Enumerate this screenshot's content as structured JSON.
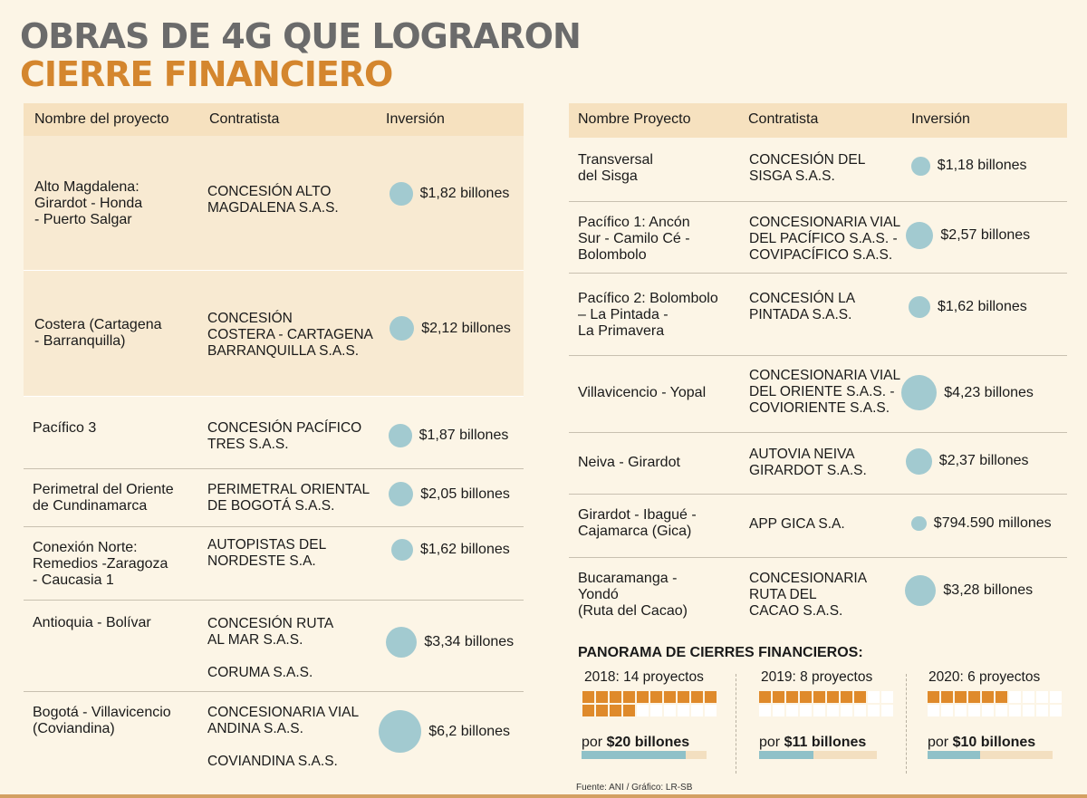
{
  "title": {
    "line1": "OBRAS DE 4G QUE LOGRARON",
    "line2": "CIERRE FINANCIERO"
  },
  "left_table": {
    "headers": {
      "name": "Nombre del proyecto",
      "contractor": "Contratista",
      "investment": "Inversión"
    },
    "rows": [
      {
        "name": "Alto Magdalena:\nGirardot - Honda\n- Puerto Salgar",
        "contractor": "CONCESIÓN ALTO\nMAGDALENA S.A.S.",
        "investment": "$1,82 billones",
        "value_billions": 1.82
      },
      {
        "name": "Costera (Cartagena\n - Barranquilla)",
        "contractor": "CONCESIÓN\nCOSTERA - CARTAGENA\nBARRANQUILLA S.A.S.",
        "investment": "$2,12 billones",
        "value_billions": 2.12
      },
      {
        "name": "Pacífico 3",
        "contractor": "CONCESIÓN PACÍFICO\nTRES S.A.S.",
        "investment": "$1,87 billones",
        "value_billions": 1.87
      },
      {
        "name": "Perimetral del Oriente\nde Cundinamarca",
        "contractor": "PERIMETRAL ORIENTAL\nDE BOGOTÁ S.A.S.",
        "investment": "$2,05 billones",
        "value_billions": 2.05
      },
      {
        "name": "Conexión Norte:\nRemedios -Zaragoza\n- Caucasia 1",
        "contractor": "AUTOPISTAS DEL\nNORDESTE S.A.",
        "investment": "$1,62 billones",
        "value_billions": 1.62
      },
      {
        "name": "Antioquia - Bolívar",
        "contractor": "CONCESIÓN RUTA\nAL MAR S.A.S.\n\nCORUMA S.A.S.",
        "investment": "$3,34 billones",
        "value_billions": 3.34
      },
      {
        "name": "Bogotá - Villavicencio\n (Coviandina)",
        "contractor": "CONCESIONARIA VIAL\nANDINA S.A.S.\n\nCOVIANDINA S.A.S.",
        "investment": "$6,2 billones",
        "value_billions": 6.2
      }
    ]
  },
  "right_table": {
    "headers": {
      "name": "Nombre Proyecto",
      "contractor": "Contratista",
      "investment": "Inversión"
    },
    "rows": [
      {
        "name": "Transversal\ndel Sisga",
        "contractor": "CONCESIÓN DEL\nSISGA S.A.S.",
        "investment": "$1,18 billones",
        "value_billions": 1.18
      },
      {
        "name": "Pacífico 1: Ancón\nSur - Camilo Cé -\nBolombolo",
        "contractor": "CONCESIONARIA VIAL\nDEL PACÍFICO S.A.S. -\nCOVIPACÍFICO S.A.S.",
        "investment": "$2,57 billones",
        "value_billions": 2.57
      },
      {
        "name": "Pacífico 2: Bolombolo\n– La Pintada -\n La Primavera",
        "contractor": "CONCESIÓN LA\nPINTADA S.A.S.",
        "investment": "$1,62 billones",
        "value_billions": 1.62
      },
      {
        "name": "Villavicencio - Yopal",
        "contractor": "CONCESIONARIA VIAL\nDEL ORIENTE S.A.S. -\nCOVIORIENTE S.A.S.",
        "investment": "$4,23 billones",
        "value_billions": 4.23
      },
      {
        "name": "Neiva - Girardot",
        "contractor": "AUTOVIA NEIVA\nGIRARDOT S.A.S.",
        "investment": "$2,37 billones",
        "value_billions": 2.37
      },
      {
        "name": "Girardot - Ibagué -\nCajamarca (Gica)",
        "contractor": "APP GICA S.A.",
        "investment": "$794.590 millones",
        "value_billions": 0.79459
      },
      {
        "name": "Bucaramanga -\nYondó\n(Ruta del Cacao)",
        "contractor": "CONCESIONARIA\nRUTA DEL\nCACAO S.A.S.",
        "investment": "$3,28 billones",
        "value_billions": 3.28
      }
    ]
  },
  "panorama": {
    "title": "PANORAMA DE CIERRES FINANCIEROS:",
    "years": [
      {
        "label": "2018: 14 proyectos",
        "projects": 14,
        "amount_prefix": "por",
        "amount": "$20 billones",
        "amount_billions": 20
      },
      {
        "label": "2019: 8 proyectos",
        "projects": 8,
        "amount_prefix": "por",
        "amount": "$11 billones",
        "amount_billions": 11
      },
      {
        "label": "2020: 6 proyectos",
        "projects": 6,
        "amount_prefix": "por",
        "amount": "$10 billones",
        "amount_billions": 10
      }
    ]
  },
  "source": "Fuente: ANI / Gráfico: LR-SB",
  "colors": {
    "title_gray": "#6b6b6b",
    "title_orange": "#d4862e",
    "bubble": "#a2cad0",
    "square_on": "#df8a2b",
    "header_bg": "#f6e1bf"
  }
}
